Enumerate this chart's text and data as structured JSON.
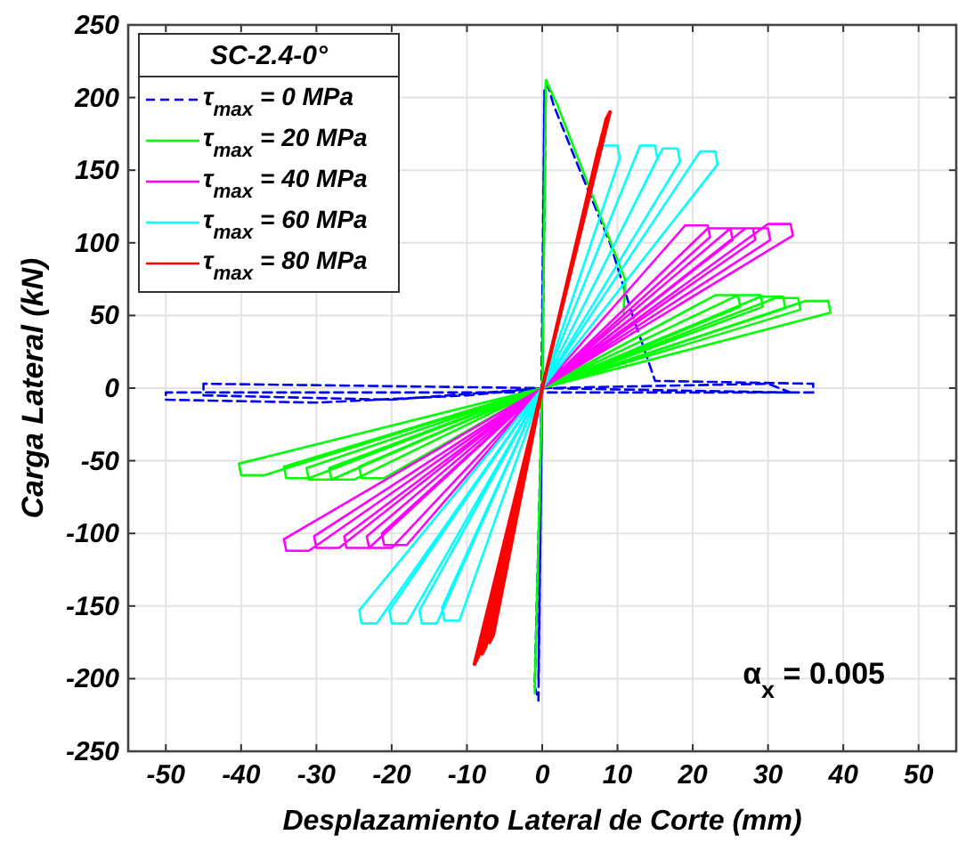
{
  "chart_data": {
    "type": "line",
    "xlabel": "Desplazamiento Lateral de Corte (mm)",
    "ylabel": "Carga Lateral (kN)",
    "legend_title": "SC-2.4-0°",
    "legend": "top left",
    "grid": true,
    "xlim": [
      -55,
      55
    ],
    "xticks": [
      -50,
      -40,
      -30,
      -20,
      -10,
      0,
      10,
      20,
      30,
      40,
      50
    ],
    "ylim": [
      -250,
      250
    ],
    "yticks": [
      -250,
      -200,
      -150,
      -100,
      -50,
      0,
      50,
      100,
      150,
      200,
      250
    ],
    "annotations": [
      "α$_{x}$ = 0.005"
    ],
    "series": [
      {
        "name": "τ$_{max}$ = 0 MPa",
        "color": "#0000ff",
        "line_style": "dashed",
        "x": [
          0,
          0.5,
          1.5,
          5,
          9,
          12,
          14,
          15,
          36,
          36,
          null,
          36,
          0,
          -50,
          -50,
          null,
          -50,
          -30,
          -10,
          0,
          null,
          0,
          -1,
          null,
          -1,
          -0.5,
          0,
          30,
          33,
          null,
          33,
          0,
          -45,
          -45,
          null,
          -45,
          -20,
          0,
          null,
          0,
          -0.5,
          null,
          -0.5,
          0.3,
          null,
          0.3,
          0
        ],
        "values": [
          0,
          213,
          195,
          150,
          100,
          50,
          20,
          5,
          3,
          -3,
          null,
          -3,
          -3,
          -3,
          -8,
          null,
          -8,
          -10,
          -5,
          0,
          null,
          0,
          -205,
          null,
          -205,
          -215,
          0,
          3,
          -3,
          null,
          -3,
          0,
          3,
          -5,
          null,
          -5,
          -8,
          0,
          null,
          0,
          -200,
          null,
          -200,
          205,
          null,
          205,
          0
        ]
      },
      {
        "name": "τ$_{max}$ = 20 MPa",
        "color": "#00ff00",
        "line_style": "solid",
        "x": [
          0,
          0.5,
          2,
          11,
          null,
          11,
          10.8,
          0,
          -1,
          null,
          -1,
          0,
          23,
          26,
          26.3,
          null,
          26.3,
          0,
          -21,
          -24,
          -24.3,
          null,
          -24.3,
          0,
          26,
          29,
          29.3,
          null,
          29.3,
          0,
          -25,
          -28,
          -28.3,
          null,
          -28.3,
          0,
          29,
          32,
          32.3,
          null,
          32.3,
          0,
          -28,
          -31,
          -31.3,
          null,
          -31.3,
          0,
          31,
          34,
          34.3,
          null,
          34.3,
          0,
          -31,
          -34,
          -34.3,
          null,
          -34.3,
          0,
          35,
          38,
          38.3,
          null,
          38.3,
          0,
          -37,
          -40,
          -40.3,
          null,
          -40.3,
          0
        ],
        "values": [
          0,
          212,
          195,
          75,
          null,
          75,
          50,
          0,
          -210,
          null,
          -210,
          0,
          64,
          64,
          56,
          null,
          56,
          0,
          -62,
          -62,
          -54,
          null,
          -54,
          0,
          64,
          64,
          56,
          null,
          56,
          0,
          -63,
          -63,
          -55,
          null,
          -55,
          0,
          63,
          63,
          55,
          null,
          55,
          0,
          -63,
          -63,
          -55,
          null,
          -55,
          0,
          62,
          62,
          54,
          null,
          54,
          0,
          -62,
          -62,
          -54,
          null,
          -54,
          0,
          60,
          60,
          52,
          null,
          52,
          0,
          -60,
          -60,
          -52,
          null,
          -52,
          0
        ]
      },
      {
        "name": "τ$_{max}$ = 40 MPa",
        "color": "#ff00ff",
        "line_style": "solid",
        "x": [
          0,
          19,
          22,
          22.3,
          null,
          22.3,
          0,
          -18,
          -21,
          -21.3,
          null,
          -21.3,
          0,
          22,
          25,
          25.3,
          null,
          25.3,
          0,
          -20,
          -23,
          -23.3,
          null,
          -23.3,
          0,
          25,
          28,
          28.3,
          null,
          28.3,
          0,
          -23,
          -26,
          -26.3,
          null,
          -26.3,
          0,
          27,
          30,
          30.3,
          null,
          30.3,
          0,
          -27,
          -30,
          -30.3,
          null,
          -30.3,
          0,
          30,
          33,
          33.3,
          null,
          33.3,
          0,
          -31,
          -34,
          -34.3,
          null,
          -34.3,
          0
        ],
        "values": [
          0,
          112,
          112,
          104,
          null,
          104,
          0,
          -108,
          -108,
          -100,
          null,
          -100,
          0,
          110,
          110,
          102,
          null,
          102,
          0,
          -110,
          -110,
          -102,
          null,
          -102,
          0,
          110,
          110,
          102,
          null,
          102,
          0,
          -110,
          -110,
          -102,
          null,
          -102,
          0,
          110,
          110,
          102,
          null,
          102,
          0,
          -110,
          -110,
          -102,
          null,
          -102,
          0,
          113,
          113,
          105,
          null,
          105,
          0,
          -112,
          -112,
          -104,
          null,
          -104,
          0
        ]
      },
      {
        "name": "τ$_{max}$ = 60 MPa",
        "color": "#00ffff",
        "line_style": "solid",
        "x": [
          0,
          8,
          10,
          10.3,
          null,
          10.3,
          0,
          -11,
          -13,
          -13.3,
          null,
          -13.3,
          0,
          13,
          15,
          15.3,
          null,
          15.3,
          0,
          -14,
          -16,
          -16.3,
          null,
          -16.3,
          0,
          16,
          18,
          18.3,
          null,
          18.3,
          0,
          -18,
          -20,
          -20.3,
          null,
          -20.3,
          0,
          21,
          23,
          23.3,
          null,
          23.3,
          0,
          -22,
          -24,
          -24.3,
          null,
          -24.3,
          0
        ],
        "values": [
          0,
          167,
          167,
          158,
          null,
          158,
          0,
          -160,
          -160,
          -151,
          null,
          -151,
          0,
          167,
          167,
          158,
          null,
          158,
          0,
          -162,
          -162,
          -153,
          null,
          -153,
          0,
          165,
          165,
          156,
          null,
          156,
          0,
          -162,
          -162,
          -153,
          null,
          -153,
          0,
          163,
          163,
          154,
          null,
          154,
          0,
          -162,
          -162,
          -153,
          null,
          -153,
          0
        ]
      },
      {
        "name": "τ$_{max}$ = 80 MPa",
        "color": "#ff0000",
        "line_style": "solid",
        "x": [
          0,
          7.5,
          8,
          null,
          8,
          0,
          -6.5,
          -7,
          null,
          -7,
          0,
          8,
          8.5,
          null,
          8.5,
          0,
          -7.5,
          -8,
          null,
          -8,
          0,
          8.5,
          9,
          null,
          9,
          0,
          -8.5,
          -9,
          null,
          -9,
          0
        ],
        "values": [
          0,
          165,
          170,
          null,
          170,
          0,
          -170,
          -175,
          null,
          -175,
          0,
          175,
          180,
          null,
          180,
          0,
          -178,
          -183,
          null,
          -183,
          0,
          185,
          190,
          null,
          190,
          0,
          -185,
          -190,
          null,
          -190,
          0
        ]
      }
    ]
  }
}
